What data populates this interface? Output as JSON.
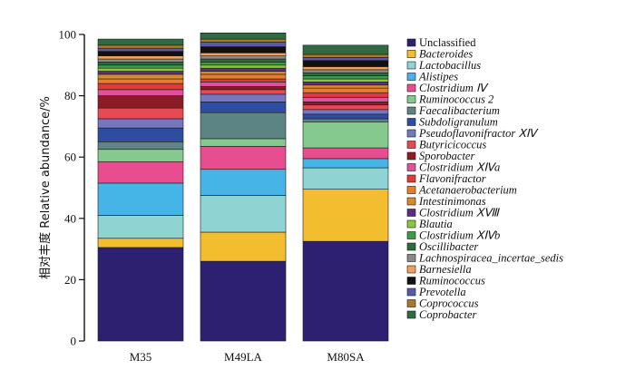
{
  "chart_data": {
    "type": "bar",
    "stacked": true,
    "normalized": true,
    "title": "",
    "xlabel": "",
    "ylabel": "相对丰度  Relative abundance/%",
    "ylim": [
      0,
      100
    ],
    "yticks": [
      "0",
      "20",
      "40",
      "60",
      "80",
      "100"
    ],
    "categories": [
      "M35",
      "M49LA",
      "M80SA"
    ],
    "grid": false,
    "legend_position": "right",
    "series": [
      {
        "name": "Unclassified",
        "italic": false,
        "color": "#2d2070",
        "values": [
          30.5,
          26.0,
          32.5
        ]
      },
      {
        "name": "Bacteroides",
        "italic": true,
        "color": "#f2bd2e",
        "values": [
          3.0,
          9.5,
          17.0
        ]
      },
      {
        "name": "Lactobacillus",
        "italic": true,
        "color": "#8fd3d3",
        "values": [
          7.5,
          12.0,
          7.0
        ]
      },
      {
        "name": "Alistipes",
        "italic": true,
        "color": "#45b5e8",
        "values": [
          10.5,
          8.5,
          3.0
        ]
      },
      {
        "name": "Clostridium Ⅳ",
        "italic": true,
        "color": "#e84e8f",
        "values": [
          7.0,
          7.5,
          3.5
        ]
      },
      {
        "name": "Ruminococcus 2",
        "italic": true,
        "color": "#86c98e",
        "values": [
          4.0,
          2.5,
          8.5
        ]
      },
      {
        "name": "Faecalibacterium",
        "italic": true,
        "color": "#5c8484",
        "values": [
          2.5,
          8.5,
          1.0
        ]
      },
      {
        "name": "Subdoligranulum",
        "italic": true,
        "color": "#2f4da0",
        "values": [
          4.5,
          3.5,
          1.5
        ]
      },
      {
        "name": "Pseudoflavonifractor ⅩⅣ",
        "italic": true,
        "color": "#7676c2",
        "values": [
          3.0,
          2.5,
          1.5
        ]
      },
      {
        "name": "Butyricicoccus",
        "italic": true,
        "color": "#e64a52",
        "values": [
          3.5,
          1.5,
          1.5
        ]
      },
      {
        "name": "Sporobacter",
        "italic": true,
        "color": "#8b1c24",
        "values": [
          4.0,
          1.0,
          1.0
        ]
      },
      {
        "name": "Clostridium ⅩⅣa",
        "italic": true,
        "color": "#e0529e",
        "values": [
          2.0,
          1.5,
          1.5
        ]
      },
      {
        "name": "Flavonifractor",
        "italic": true,
        "color": "#e03a3a",
        "values": [
          2.0,
          1.0,
          1.5
        ]
      },
      {
        "name": "Acetanaerobacterium",
        "italic": true,
        "color": "#e67e30",
        "values": [
          1.5,
          1.5,
          1.5
        ]
      },
      {
        "name": "Intestinimonas",
        "italic": true,
        "color": "#d9892e",
        "values": [
          1.5,
          1.0,
          1.0
        ]
      },
      {
        "name": "Clostridium ⅩⅧ",
        "italic": true,
        "color": "#5a2f80",
        "values": [
          1.0,
          1.0,
          1.0
        ]
      },
      {
        "name": "Blautia",
        "italic": true,
        "color": "#8cc63f",
        "values": [
          1.0,
          1.0,
          1.0
        ]
      },
      {
        "name": "Clostridium ⅩⅣb",
        "italic": true,
        "color": "#3f9a4a",
        "values": [
          1.0,
          1.0,
          1.0
        ]
      },
      {
        "name": "Oscillibacter",
        "italic": true,
        "color": "#2d6b3c",
        "values": [
          1.0,
          1.0,
          1.0
        ]
      },
      {
        "name": "Lachnospiracea_incertae_sedis",
        "italic": true,
        "color": "#8a8a8a",
        "values": [
          1.0,
          1.0,
          1.0
        ]
      },
      {
        "name": "Barnesiella",
        "italic": true,
        "color": "#f2a15a",
        "values": [
          1.0,
          1.0,
          1.0
        ]
      },
      {
        "name": "Ruminococcus",
        "italic": true,
        "color": "#111111",
        "values": [
          1.5,
          2.0,
          2.0
        ]
      },
      {
        "name": "Prevotella",
        "italic": true,
        "color": "#5a58a8",
        "values": [
          1.0,
          1.5,
          1.0
        ]
      },
      {
        "name": "Coprococcus",
        "italic": true,
        "color": "#a8782c",
        "values": [
          1.0,
          1.0,
          1.0
        ]
      },
      {
        "name": "Coprobacter",
        "italic": true,
        "color": "#2f6a43",
        "values": [
          2.0,
          2.0,
          3.0
        ]
      }
    ]
  }
}
